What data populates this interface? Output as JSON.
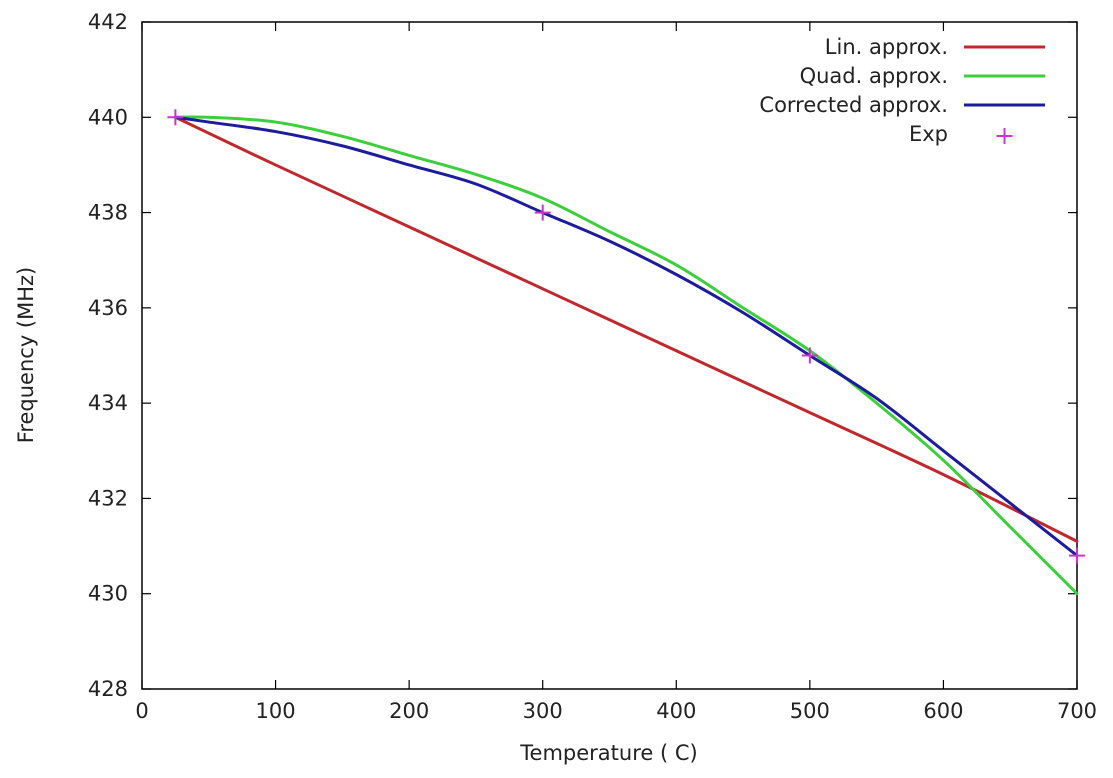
{
  "chart_data": {
    "type": "line",
    "title": "",
    "xlabel": "Temperature ( C)",
    "ylabel": "Frequency (MHz)",
    "xlim": [
      0,
      700
    ],
    "ylim": [
      428,
      442
    ],
    "xticks": [
      0,
      100,
      200,
      300,
      400,
      500,
      600,
      700
    ],
    "yticks": [
      428,
      430,
      432,
      434,
      436,
      438,
      440,
      442
    ],
    "grid": false,
    "legend_position": "top-right",
    "series": [
      {
        "name": "Lin. approx.",
        "color": "#c0282d",
        "kind": "line",
        "x": [
          25,
          100,
          200,
          300,
          400,
          500,
          600,
          700
        ],
        "y": [
          440.0,
          439.0,
          437.7,
          436.4,
          435.1,
          433.8,
          432.5,
          431.1
        ]
      },
      {
        "name": "Quad. approx.",
        "color": "#3ccf3c",
        "kind": "line",
        "x": [
          25,
          50,
          100,
          150,
          200,
          250,
          300,
          350,
          400,
          450,
          500,
          550,
          600,
          650,
          700
        ],
        "y": [
          440.0,
          440.0,
          439.9,
          439.6,
          439.2,
          438.8,
          438.3,
          437.6,
          436.9,
          436.0,
          435.1,
          434.0,
          432.8,
          431.4,
          430.0
        ]
      },
      {
        "name": "Corrected approx.",
        "color": "#1c1c9c",
        "kind": "line",
        "x": [
          25,
          50,
          100,
          150,
          200,
          250,
          300,
          350,
          400,
          450,
          500,
          550,
          600,
          650,
          700
        ],
        "y": [
          440.0,
          439.9,
          439.7,
          439.4,
          439.0,
          438.6,
          438.0,
          437.4,
          436.7,
          435.9,
          435.0,
          434.1,
          433.0,
          431.9,
          430.8
        ]
      },
      {
        "name": "Exp",
        "color": "#cc33cc",
        "kind": "points",
        "x": [
          25,
          300,
          500,
          700
        ],
        "y": [
          440.0,
          438.0,
          435.0,
          430.8
        ]
      }
    ]
  }
}
